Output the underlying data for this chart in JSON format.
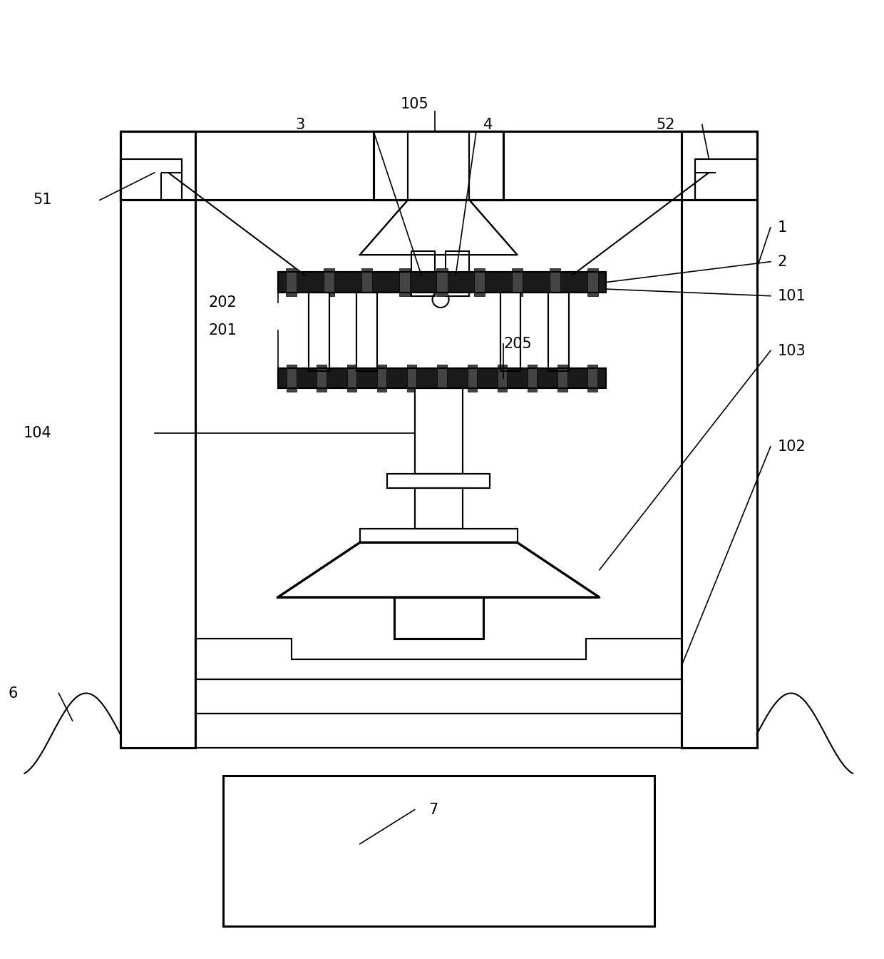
{
  "bg_color": "#ffffff",
  "line_color": "#000000",
  "lw": 1.5,
  "tlw": 2.2,
  "fs": 15,
  "fig_width": 12.4,
  "fig_height": 13.44
}
